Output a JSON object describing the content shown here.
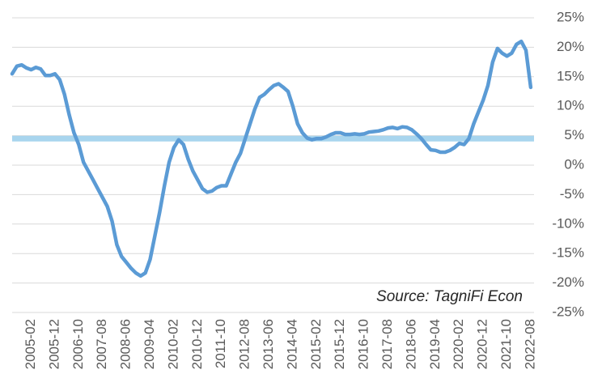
{
  "chart_data": {
    "type": "line",
    "annotation": "Source: TagniFi Econ",
    "categories": [
      null,
      null,
      null,
      null,
      "2005-02",
      null,
      null,
      null,
      null,
      "2005-12",
      null,
      null,
      null,
      null,
      "2006-10",
      null,
      null,
      null,
      null,
      "2007-08",
      null,
      null,
      null,
      null,
      "2008-06",
      null,
      null,
      null,
      null,
      "2009-04",
      null,
      null,
      null,
      null,
      "2010-02",
      null,
      null,
      null,
      null,
      "2010-12",
      null,
      null,
      null,
      null,
      "2011-10",
      null,
      null,
      null,
      null,
      "2012-08",
      null,
      null,
      null,
      null,
      "2013-06",
      null,
      null,
      null,
      null,
      "2014-04",
      null,
      null,
      null,
      null,
      "2015-02",
      null,
      null,
      null,
      null,
      "2015-12",
      null,
      null,
      null,
      null,
      "2016-10",
      null,
      null,
      null,
      null,
      "2017-08",
      null,
      null,
      null,
      null,
      "2018-06",
      null,
      null,
      null,
      null,
      "2019-04",
      null,
      null,
      null,
      null,
      "2020-02",
      null,
      null,
      null,
      null,
      "2020-12",
      null,
      null,
      null,
      null,
      "2021-10",
      null,
      null,
      null,
      null,
      "2022-08"
    ],
    "series": [
      {
        "color": "#5b9bd5",
        "values": [
          15.5,
          16.8,
          17,
          16.5,
          16.2,
          16.6,
          16.3,
          15.2,
          15.2,
          15.5,
          14.5,
          12,
          8.5,
          5.5,
          3.5,
          0.5,
          -1,
          -2.5,
          -4,
          -5.5,
          -7,
          -9.5,
          -13.5,
          -15.5,
          -16.5,
          -17.5,
          -18.3,
          -18.8,
          -18.3,
          -16,
          -12,
          -8,
          -3.5,
          0.5,
          3,
          4.3,
          3.5,
          1,
          -1,
          -2.5,
          -4,
          -4.6,
          -4.4,
          -3.8,
          -3.5,
          -3.5,
          -1.5,
          0.5,
          2,
          4.5,
          7,
          9.5,
          11.5,
          12,
          12.8,
          13.5,
          13.8,
          13.2,
          12.5,
          10,
          7,
          5.5,
          4.6,
          4.3,
          4.5,
          4.5,
          4.8,
          5.2,
          5.5,
          5.5,
          5.2,
          5.2,
          5.3,
          5.2,
          5.3,
          5.6,
          5.7,
          5.8,
          6,
          6.3,
          6.4,
          6.2,
          6.5,
          6.4,
          6,
          5.3,
          4.5,
          3.5,
          2.6,
          2.5,
          2.2,
          2.2,
          2.5,
          3,
          3.7,
          3.5,
          4.5,
          7,
          9,
          11,
          13.5,
          17.5,
          19.8,
          19,
          18.5,
          19,
          20.5,
          21,
          19.5,
          13.2
        ]
      }
    ],
    "reference_line": {
      "value": 4.5,
      "color": "#a8d5ee"
    },
    "ylim": [
      -25,
      25
    ],
    "yticks": [
      {
        "value": 25,
        "label": "25%"
      },
      {
        "value": 20,
        "label": "20%"
      },
      {
        "value": 15,
        "label": "15%"
      },
      {
        "value": 10,
        "label": "10%"
      },
      {
        "value": 5,
        "label": "5%"
      },
      {
        "value": 0,
        "label": "0%"
      },
      {
        "value": -5,
        "label": "-5%"
      },
      {
        "value": -10,
        "label": "-10%"
      },
      {
        "value": -15,
        "label": "-15%"
      },
      {
        "value": -20,
        "label": "-20%"
      },
      {
        "value": -25,
        "label": "-25%"
      }
    ],
    "grid": true
  }
}
